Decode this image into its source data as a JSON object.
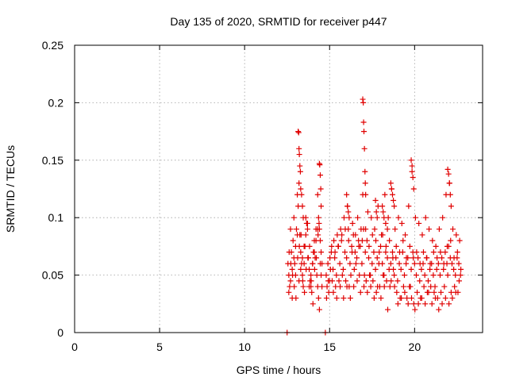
{
  "chart_data": {
    "type": "scatter",
    "title": "Day 135 of 2020, SRMTID for receiver p447",
    "xlabel": "GPS time / hours",
    "ylabel": "SRMTID / TECUs",
    "xlim": [
      0,
      24
    ],
    "ylim": [
      0,
      0.25
    ],
    "xticks": [
      0,
      5,
      10,
      15,
      20
    ],
    "xtick_labels": [
      "0",
      "5",
      "10",
      "15",
      "20"
    ],
    "yticks": [
      0,
      0.05,
      0.1,
      0.15,
      0.2,
      0.25
    ],
    "ytick_labels": [
      "0",
      "0.05",
      "0.1",
      "0.15",
      "0.2",
      "0.25"
    ],
    "grid": true,
    "marker": "+",
    "color": "#e00000",
    "series": [
      {
        "name": "SRMTID",
        "x": [
          12.5,
          14.75,
          12.55,
          12.6,
          12.65,
          12.7,
          12.75,
          12.8,
          12.85,
          12.9,
          12.95,
          13.0,
          13.05,
          13.1,
          13.15,
          13.2,
          13.25,
          13.3,
          13.35,
          13.4,
          13.45,
          13.5,
          13.55,
          13.6,
          13.65,
          13.7,
          13.75,
          13.8,
          13.85,
          13.9,
          13.95,
          14.0,
          14.05,
          14.1,
          14.15,
          14.2,
          14.25,
          14.3,
          14.35,
          14.4,
          14.45,
          14.5,
          14.55,
          13.15,
          13.18,
          13.2,
          13.22,
          13.25,
          13.28,
          13.3,
          13.35,
          13.4,
          13.45,
          14.4,
          14.42,
          14.45,
          14.48,
          14.5,
          14.38,
          12.6,
          12.7,
          12.8,
          12.9,
          13.0,
          13.1,
          13.2,
          13.3,
          13.4,
          13.5,
          13.6,
          13.7,
          13.8,
          13.9,
          14.0,
          14.1,
          14.2,
          14.3,
          12.62,
          12.72,
          12.82,
          12.92,
          13.02,
          13.12,
          13.22,
          13.32,
          13.42,
          13.52,
          13.62,
          13.72,
          13.82,
          13.92,
          14.02,
          14.12,
          14.22,
          14.32,
          14.3,
          14.35,
          14.4,
          14.45,
          14.5,
          14.55,
          14.8,
          14.9,
          15.0,
          15.1,
          15.2,
          15.3,
          15.4,
          15.5,
          15.6,
          15.7,
          15.8,
          15.9,
          16.0,
          16.1,
          16.2,
          16.3,
          16.4,
          16.5,
          16.6,
          16.7,
          16.8,
          16.9,
          17.0,
          17.1,
          17.2,
          17.3,
          17.4,
          17.5,
          17.6,
          17.7,
          17.8,
          17.9,
          18.0,
          18.1,
          18.2,
          18.3,
          18.4,
          18.5,
          18.6,
          18.7,
          18.8,
          18.9,
          19.0,
          19.1,
          19.2,
          19.3,
          19.4,
          19.5,
          19.6,
          19.7,
          19.8,
          19.9,
          20.0,
          20.1,
          20.2,
          20.3,
          20.4,
          20.5,
          20.6,
          20.7,
          20.8,
          20.9,
          21.0,
          21.1,
          21.2,
          21.3,
          21.4,
          21.5,
          21.6,
          21.7,
          21.8,
          21.9,
          22.0,
          22.1,
          22.2,
          22.3,
          22.4,
          22.5,
          22.6,
          22.7,
          14.85,
          14.95,
          15.05,
          15.15,
          15.25,
          15.35,
          15.45,
          15.55,
          15.65,
          15.75,
          15.85,
          15.95,
          16.05,
          16.15,
          16.25,
          16.35,
          16.45,
          16.55,
          16.65,
          16.75,
          16.85,
          16.95,
          17.05,
          17.15,
          17.25,
          17.35,
          17.45,
          17.55,
          17.65,
          17.75,
          17.85,
          17.95,
          18.05,
          18.15,
          18.25,
          18.35,
          18.45,
          18.55,
          18.65,
          18.75,
          18.85,
          18.95,
          19.05,
          19.15,
          19.25,
          19.35,
          19.45,
          19.55,
          19.65,
          19.75,
          19.85,
          19.95,
          20.05,
          20.15,
          20.25,
          20.35,
          20.45,
          20.55,
          20.65,
          20.75,
          20.85,
          20.95,
          21.05,
          21.15,
          21.25,
          21.35,
          21.45,
          21.55,
          21.65,
          21.75,
          21.85,
          21.95,
          22.05,
          22.15,
          22.25,
          22.35,
          22.45,
          22.55,
          22.65,
          14.82,
          14.92,
          15.02,
          15.12,
          15.22,
          15.32,
          15.42,
          15.52,
          15.62,
          15.72,
          15.82,
          15.92,
          16.02,
          16.12,
          16.22,
          16.32,
          16.42,
          16.52,
          16.62,
          16.72,
          16.82,
          16.92,
          17.02,
          17.12,
          17.22,
          17.32,
          17.42,
          17.52,
          17.62,
          17.72,
          17.82,
          17.92,
          18.02,
          18.12,
          18.22,
          18.32,
          18.42,
          18.52,
          18.62,
          18.72,
          18.82,
          18.92,
          19.02,
          19.12,
          19.22,
          19.32,
          19.42,
          19.52,
          19.62,
          19.72,
          19.82,
          19.92,
          20.02,
          20.12,
          20.22,
          20.32,
          20.42,
          20.52,
          20.62,
          20.72,
          20.82,
          20.92,
          21.02,
          21.12,
          21.22,
          21.32,
          21.42,
          21.52,
          21.62,
          21.72,
          21.82,
          21.92,
          22.02,
          22.12,
          22.22,
          22.32,
          22.42,
          22.52,
          22.62,
          22.72,
          16.95,
          16.98,
          17.0,
          17.02,
          17.05,
          17.08,
          17.1,
          17.12,
          16.0,
          16.05,
          16.1,
          16.15,
          18.6,
          18.65,
          18.7,
          18.75,
          18.8,
          19.8,
          19.85,
          19.9,
          19.95,
          21.95,
          22.0,
          22.05,
          22.1,
          22.15,
          17.7,
          17.75,
          17.8,
          18.1,
          18.15,
          18.2,
          18.3,
          18.4
        ],
        "y": [
          0.0,
          0.0,
          0.06,
          0.05,
          0.04,
          0.09,
          0.07,
          0.03,
          0.08,
          0.1,
          0.06,
          0.05,
          0.09,
          0.12,
          0.11,
          0.13,
          0.085,
          0.07,
          0.06,
          0.05,
          0.04,
          0.06,
          0.075,
          0.1,
          0.095,
          0.09,
          0.065,
          0.055,
          0.045,
          0.04,
          0.035,
          0.06,
          0.07,
          0.08,
          0.065,
          0.09,
          0.05,
          0.04,
          0.03,
          0.02,
          0.06,
          0.05,
          0.04,
          0.175,
          0.174,
          0.16,
          0.155,
          0.145,
          0.14,
          0.125,
          0.12,
          0.11,
          0.1,
          0.147,
          0.146,
          0.137,
          0.125,
          0.11,
          0.095,
          0.035,
          0.045,
          0.055,
          0.065,
          0.075,
          0.085,
          0.045,
          0.055,
          0.065,
          0.075,
          0.085,
          0.095,
          0.04,
          0.05,
          0.06,
          0.07,
          0.08,
          0.09,
          0.07,
          0.06,
          0.05,
          0.04,
          0.03,
          0.065,
          0.075,
          0.085,
          0.045,
          0.035,
          0.055,
          0.065,
          0.075,
          0.045,
          0.025,
          0.055,
          0.065,
          0.085,
          0.12,
          0.1,
          0.09,
          0.08,
          0.07,
          0.06,
          0.05,
          0.06,
          0.045,
          0.07,
          0.055,
          0.065,
          0.05,
          0.075,
          0.06,
          0.08,
          0.055,
          0.07,
          0.065,
          0.09,
          0.06,
          0.075,
          0.085,
          0.07,
          0.065,
          0.08,
          0.075,
          0.06,
          0.09,
          0.07,
          0.08,
          0.065,
          0.05,
          0.06,
          0.07,
          0.055,
          0.065,
          0.06,
          0.075,
          0.06,
          0.05,
          0.07,
          0.065,
          0.055,
          0.06,
          0.07,
          0.05,
          0.065,
          0.045,
          0.06,
          0.055,
          0.07,
          0.05,
          0.06,
          0.065,
          0.04,
          0.055,
          0.07,
          0.06,
          0.05,
          0.065,
          0.045,
          0.055,
          0.06,
          0.05,
          0.065,
          0.045,
          0.055,
          0.06,
          0.05,
          0.04,
          0.055,
          0.06,
          0.05,
          0.065,
          0.055,
          0.07,
          0.06,
          0.075,
          0.065,
          0.06,
          0.055,
          0.05,
          0.065,
          0.06,
          0.05,
          0.04,
          0.035,
          0.055,
          0.045,
          0.08,
          0.04,
          0.085,
          0.045,
          0.09,
          0.05,
          0.1,
          0.045,
          0.11,
          0.04,
          0.05,
          0.095,
          0.055,
          0.06,
          0.1,
          0.05,
          0.09,
          0.12,
          0.05,
          0.045,
          0.105,
          0.05,
          0.1,
          0.045,
          0.09,
          0.035,
          0.11,
          0.04,
          0.085,
          0.05,
          0.12,
          0.045,
          0.1,
          0.04,
          0.125,
          0.055,
          0.09,
          0.035,
          0.1,
          0.03,
          0.095,
          0.04,
          0.085,
          0.03,
          0.11,
          0.04,
          0.14,
          0.025,
          0.1,
          0.035,
          0.095,
          0.03,
          0.085,
          0.04,
          0.1,
          0.035,
          0.09,
          0.04,
          0.08,
          0.035,
          0.075,
          0.03,
          0.09,
          0.035,
          0.1,
          0.04,
          0.12,
          0.05,
          0.13,
          0.035,
          0.09,
          0.04,
          0.085,
          0.035,
          0.08,
          0.03,
          0.045,
          0.065,
          0.075,
          0.035,
          0.07,
          0.03,
          0.075,
          0.04,
          0.085,
          0.03,
          0.09,
          0.04,
          0.08,
          0.03,
          0.07,
          0.04,
          0.085,
          0.045,
          0.075,
          0.035,
          0.08,
          0.04,
          0.09,
          0.035,
          0.075,
          0.04,
          0.085,
          0.03,
          0.08,
          0.04,
          0.07,
          0.03,
          0.085,
          0.04,
          0.075,
          0.02,
          0.08,
          0.045,
          0.065,
          0.04,
          0.075,
          0.025,
          0.07,
          0.03,
          0.08,
          0.035,
          0.065,
          0.025,
          0.075,
          0.03,
          0.065,
          0.02,
          0.07,
          0.025,
          0.06,
          0.03,
          0.07,
          0.025,
          0.065,
          0.035,
          0.06,
          0.025,
          0.07,
          0.03,
          0.065,
          0.02,
          0.07,
          0.025,
          0.06,
          0.03,
          0.075,
          0.025,
          0.08,
          0.03,
          0.065,
          0.035,
          0.07,
          0.045,
          0.055,
          0.203,
          0.2,
          0.183,
          0.175,
          0.16,
          0.14,
          0.13,
          0.12,
          0.12,
          0.11,
          0.105,
          0.1,
          0.13,
          0.125,
          0.12,
          0.115,
          0.11,
          0.15,
          0.145,
          0.135,
          0.125,
          0.142,
          0.138,
          0.13,
          0.12,
          0.11,
          0.115,
          0.105,
          0.1,
          0.11,
          0.105,
          0.1,
          0.095,
          0.09
        ]
      }
    ]
  }
}
